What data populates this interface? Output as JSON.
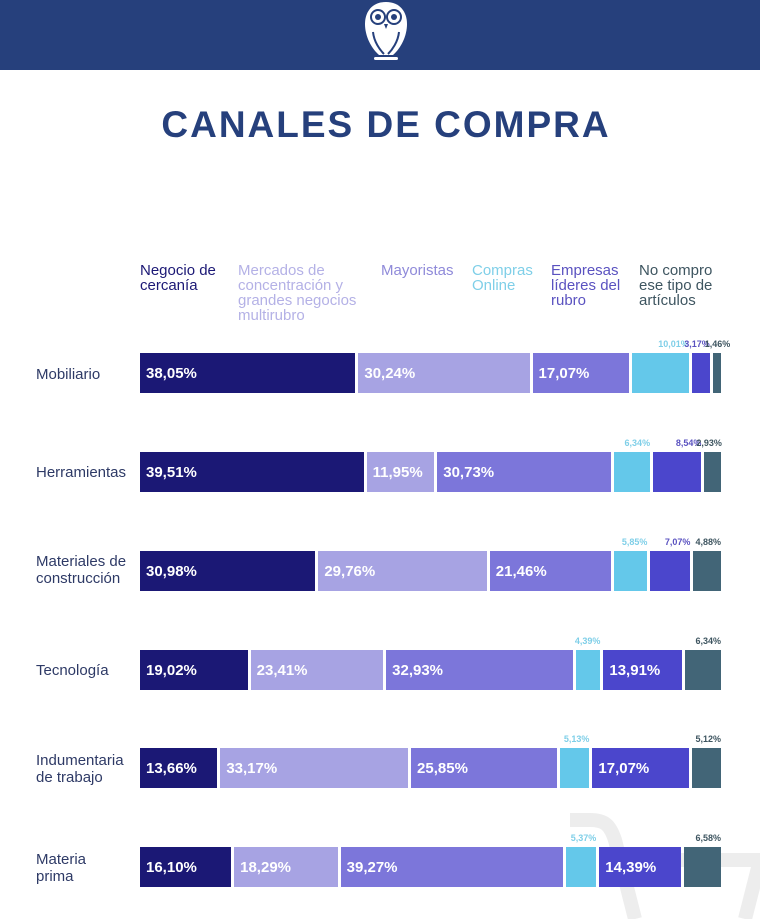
{
  "header": {
    "logo": "owl-logo-icon",
    "bar_color": "#26407c"
  },
  "page": {
    "title": "CANALES DE COMPRA"
  },
  "chart_data": {
    "type": "bar",
    "orientation": "horizontal",
    "stacked": true,
    "title": "CANALES DE COMPRA",
    "xlabel": "",
    "ylabel": "",
    "unit": "%",
    "xlim": [
      0,
      100
    ],
    "grid": false,
    "legend_position": "top",
    "categories": [
      "Mobiliario",
      "Herramientas",
      "Materiales de\nconstrucción",
      "Tecnología",
      "Indumentaria\nde trabajo",
      "Materia\nprima"
    ],
    "series": [
      {
        "name": "Negocio de\ncercanía",
        "color": "#1b1875",
        "label_color": "#1b1875",
        "values": [
          38.05,
          39.51,
          30.98,
          19.02,
          13.66,
          16.1
        ],
        "labels": [
          "38,05%",
          "39,51%",
          "30,98%",
          "19,02%",
          "13,66%",
          "16,10%"
        ]
      },
      {
        "name": "Mercados de\nconcentración y\ngrandes negocios\nmultirubro",
        "color": "#a7a3e3",
        "label_color": "#b4b1e6",
        "values": [
          30.24,
          11.95,
          29.76,
          23.41,
          33.17,
          18.29
        ],
        "labels": [
          "30,24%",
          "11,95%",
          "29,76%",
          "23,41%",
          "33,17%",
          "18,29%"
        ]
      },
      {
        "name": "Mayoristas",
        "color": "#7c76da",
        "label_color": "#8f8ad9",
        "values": [
          17.07,
          30.73,
          21.46,
          32.93,
          25.85,
          39.27
        ],
        "labels": [
          "17,07%",
          "30,73%",
          "21,46%",
          "32,93%",
          "25,85%",
          "39,27%"
        ]
      },
      {
        "name": "Compras\nOnline",
        "color": "#64c8ea",
        "label_color": "#7fcfe8",
        "values": [
          10.01,
          6.34,
          5.85,
          4.39,
          5.13,
          5.37
        ],
        "labels": [
          "10,01%",
          "6,34%",
          "5,85%",
          "4,39%",
          "5,13%",
          "5,37%"
        ]
      },
      {
        "name": "Empresas\nlíderes del\nrubro",
        "color": "#4b46cc",
        "label_color": "#5a52c0",
        "values": [
          3.17,
          8.54,
          7.07,
          13.91,
          17.07,
          14.39
        ],
        "labels": [
          "3,17%",
          "8,54%",
          "7,07%",
          "13,91%",
          "17,07%",
          "14,39%"
        ]
      },
      {
        "name": "No compro\nese tipo de\nartículos",
        "color": "#426577",
        "label_color": "#3e5560",
        "values": [
          1.46,
          2.93,
          4.88,
          6.34,
          5.12,
          6.58
        ],
        "labels": [
          "1,46%",
          "2,93%",
          "4,88%",
          "6,34%",
          "5,12%",
          "6,58%"
        ]
      }
    ]
  }
}
